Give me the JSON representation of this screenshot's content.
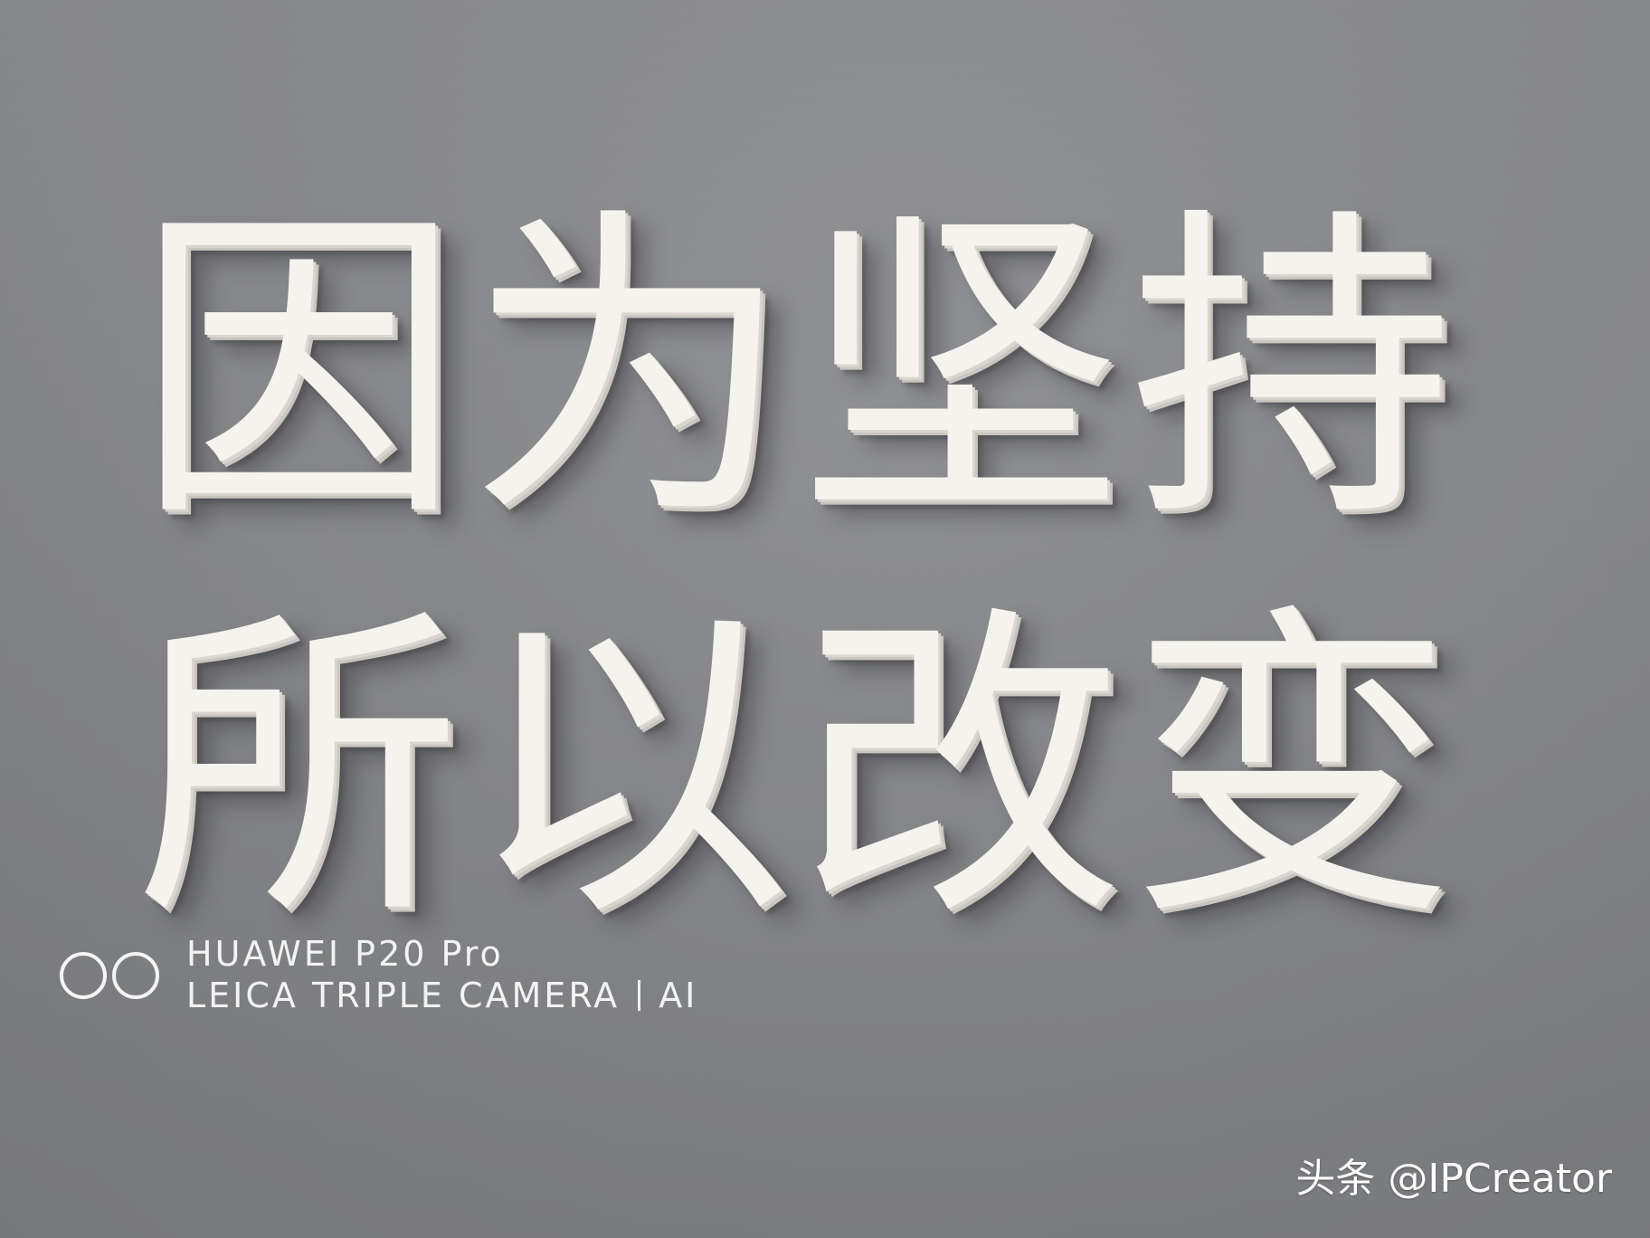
{
  "sign": {
    "line1": "因为坚持",
    "line2": "所以改变"
  },
  "camera_watermark": {
    "model": "HUAWEI P20 Pro",
    "camera_left": "LEICA TRIPLE CAMERA",
    "camera_right": "AI"
  },
  "source_watermark": {
    "text": "头条 @IPCreator"
  },
  "colors": {
    "wall": "#86878a",
    "letters": "#f5f3ee",
    "watermark_text": "#f3f3f3"
  }
}
